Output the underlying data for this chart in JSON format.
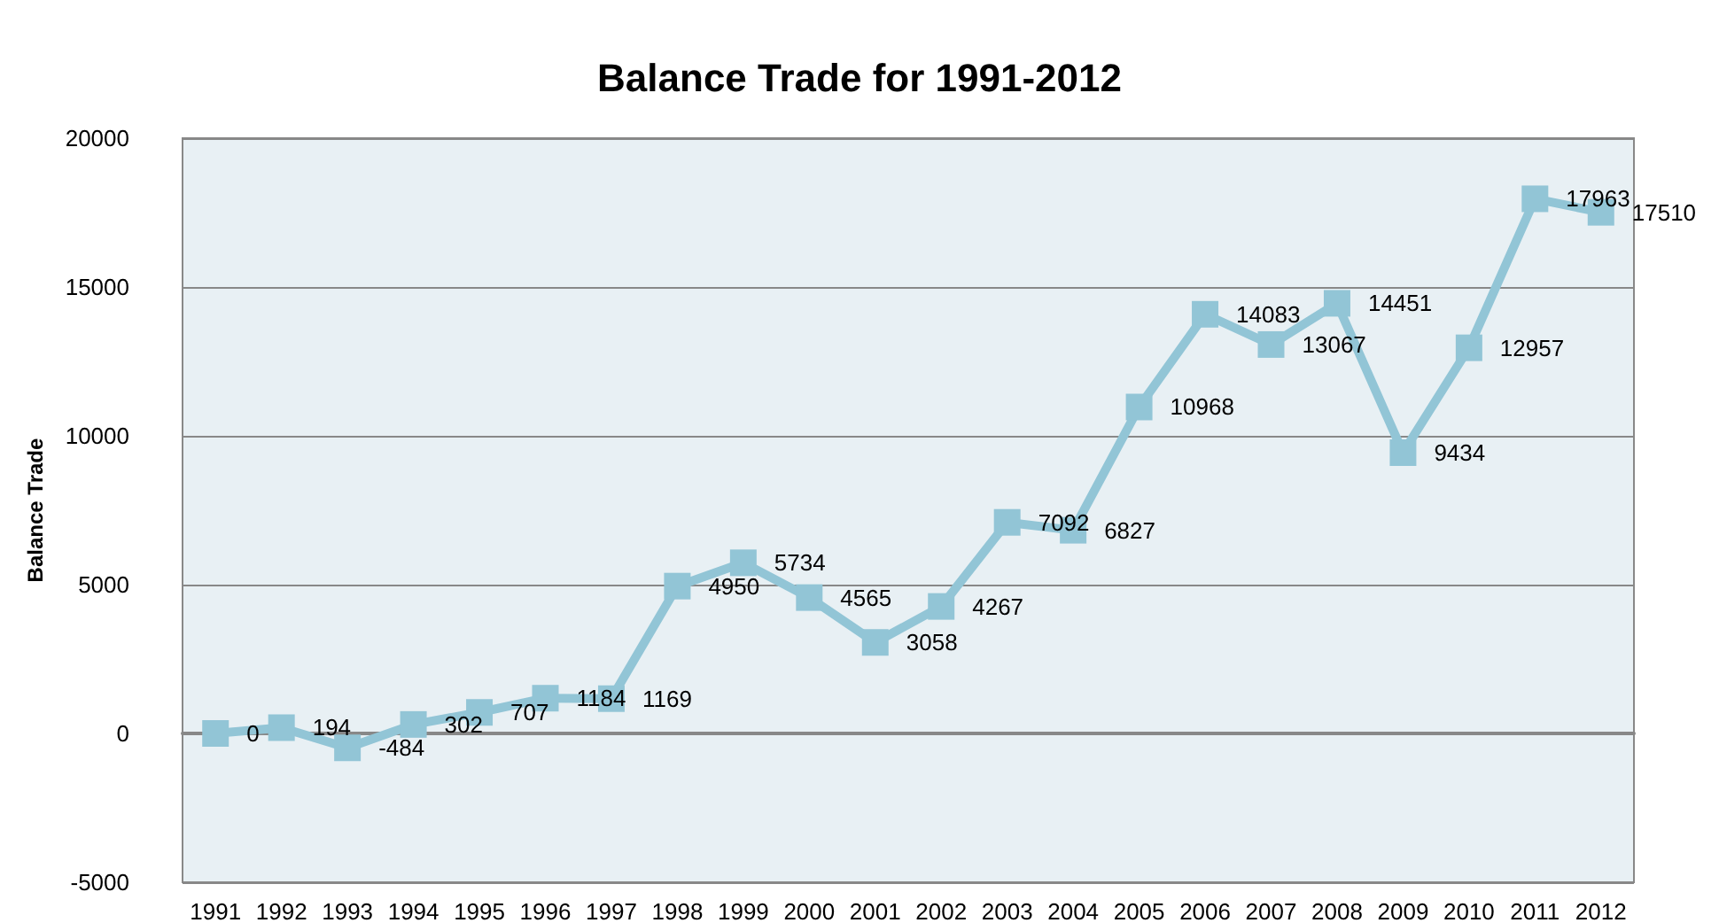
{
  "chart_data": {
    "type": "line",
    "title": "Balance Trade for 1991-2012",
    "ylabel": "Balance Trade",
    "categories": [
      "1991",
      "1992",
      "1993",
      "1994",
      "1995",
      "1996",
      "1997",
      "1998",
      "1999",
      "2000",
      "2001",
      "2002",
      "2003",
      "2004",
      "2005",
      "2006",
      "2007",
      "2008",
      "2009",
      "2010",
      "2011",
      "2012"
    ],
    "series": [
      {
        "color": "#92c5d6",
        "values": [
          0,
          194,
          -484,
          302,
          707,
          1184,
          1169,
          4950,
          5734,
          4565,
          3058,
          4267,
          7092,
          6827,
          10968,
          14083,
          13067,
          14451,
          9434,
          12957,
          17963,
          17510
        ]
      }
    ],
    "ylim": [
      -5000,
      20000
    ],
    "yticks": [
      -5000,
      0,
      5000,
      10000,
      15000,
      20000
    ],
    "grid": "y",
    "marker": "square",
    "line_style": "solid",
    "data_labels": true
  }
}
